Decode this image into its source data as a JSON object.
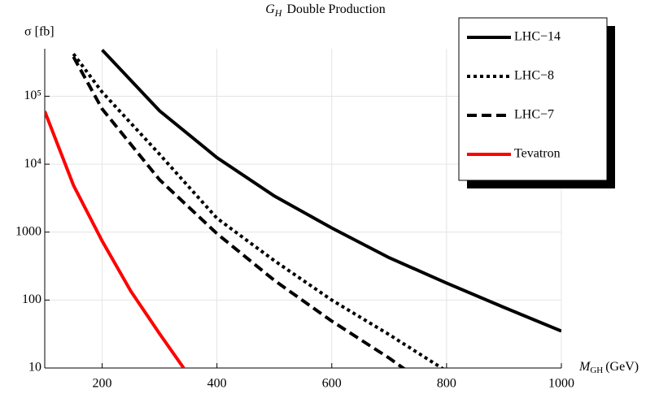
{
  "chart_data": {
    "type": "line",
    "title_symbol": {
      "base": "G",
      "sub": "H"
    },
    "title": "Double Production",
    "y_label": "σ [fb]",
    "x_label_symbol": {
      "base": "M",
      "sub": "GH"
    },
    "x_label": "(GeV)",
    "log_y": true,
    "grid": true,
    "legend_position": "upper right",
    "xlim": [
      100,
      1000
    ],
    "ylim": [
      10,
      500000
    ],
    "xticks": [
      200,
      400,
      600,
      800,
      1000
    ],
    "yticks": [
      10,
      100,
      1000,
      {
        "value": 10000,
        "label": "10⁴"
      },
      {
        "value": 100000,
        "label": "10⁵"
      }
    ],
    "series": [
      {
        "name": "LHC−14",
        "color": "#000000",
        "dash": "solid",
        "x": [
          200,
          300,
          400,
          500,
          600,
          700,
          800,
          900,
          1000
        ],
        "values": [
          480000,
          61000,
          12500,
          3400,
          1150,
          420,
          178,
          78,
          35
        ]
      },
      {
        "name": "LHC−8",
        "color": "#000000",
        "dash": "dotted",
        "x": [
          150,
          200,
          300,
          400,
          500,
          600,
          700,
          800
        ],
        "values": [
          420000,
          115000,
          14000,
          1600,
          380,
          100,
          31,
          9
        ]
      },
      {
        "name": "LHC−7",
        "color": "#000000",
        "dash": "dashed",
        "x": [
          150,
          200,
          300,
          400,
          500,
          600,
          700,
          750
        ],
        "values": [
          380000,
          65000,
          5900,
          950,
          195,
          49,
          14,
          7
        ]
      },
      {
        "name": "Tevatron",
        "color": "#ff0000",
        "dash": "solid",
        "x": [
          100,
          150,
          200,
          250,
          300,
          350
        ],
        "values": [
          60000,
          4900,
          740,
          135,
          32,
          8
        ]
      }
    ]
  }
}
